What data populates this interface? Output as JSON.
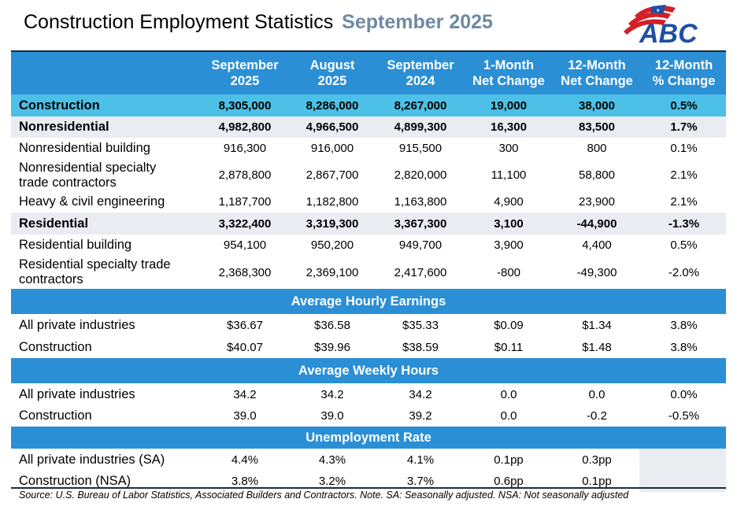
{
  "title": {
    "main": "Construction Employment Statistics",
    "date": "September 2025"
  },
  "logo": {
    "text": "ABC"
  },
  "columns": [
    [
      "September",
      "2025"
    ],
    [
      "August",
      "2025"
    ],
    [
      "September",
      "2024"
    ],
    [
      "1-Month",
      "Net Change"
    ],
    [
      "12-Month",
      "Net Change"
    ],
    [
      "12-Month",
      "% Change"
    ]
  ],
  "rows": [
    {
      "label": [
        "Construction"
      ],
      "values": [
        "8,305,000",
        "8,286,000",
        "8,267,000",
        "19,000",
        "38,000",
        "0.5%"
      ]
    },
    {
      "label": [
        "Nonresidential"
      ],
      "values": [
        "4,982,800",
        "4,966,500",
        "4,899,300",
        "16,300",
        "83,500",
        "1.7%"
      ]
    },
    {
      "label": [
        "Nonresidential building"
      ],
      "values": [
        "916,300",
        "916,000",
        "915,500",
        "300",
        "800",
        "0.1%"
      ]
    },
    {
      "label": [
        "Nonresidential specialty",
        "trade contractors"
      ],
      "values": [
        "2,878,800",
        "2,867,700",
        "2,820,000",
        "11,100",
        "58,800",
        "2.1%"
      ]
    },
    {
      "label": [
        "Heavy & civil engineering"
      ],
      "values": [
        "1,187,700",
        "1,182,800",
        "1,163,800",
        "4,900",
        "23,900",
        "2.1%"
      ]
    },
    {
      "label": [
        "Residential"
      ],
      "values": [
        "3,322,400",
        "3,319,300",
        "3,367,300",
        "3,100",
        "-44,900",
        "-1.3%"
      ]
    },
    {
      "label": [
        "Residential building"
      ],
      "values": [
        "954,100",
        "950,200",
        "949,700",
        "3,900",
        "4,400",
        "0.5%"
      ]
    },
    {
      "label": [
        "Residential specialty trade",
        "contractors"
      ],
      "values": [
        "2,368,300",
        "2,369,100",
        "2,417,600",
        "-800",
        "-49,300",
        "-2.0%"
      ]
    }
  ],
  "earnings": {
    "title": "Average Hourly Earnings",
    "rows": [
      {
        "label": "All private industries",
        "values": [
          "$36.67",
          "$36.58",
          "$35.33",
          "$0.09",
          "$1.34",
          "3.8%"
        ]
      },
      {
        "label": "Construction",
        "values": [
          "$40.07",
          "$39.96",
          "$38.59",
          "$0.11",
          "$1.48",
          "3.8%"
        ]
      }
    ]
  },
  "hours": {
    "title": "Average Weekly Hours",
    "rows": [
      {
        "label": "All private industries",
        "values": [
          "34.2",
          "34.2",
          "34.2",
          "0.0",
          "0.0",
          "0.0%"
        ]
      },
      {
        "label": "Construction",
        "values": [
          "39.0",
          "39.0",
          "39.2",
          "0.0",
          "-0.2",
          "-0.5%"
        ]
      }
    ]
  },
  "unemployment": {
    "title": "Unemployment Rate",
    "rows": [
      {
        "label": "All private industries (SA)",
        "values": [
          "4.4%",
          "4.3%",
          "4.1%",
          "0.1pp",
          "0.3pp"
        ]
      },
      {
        "label": "Construction (NSA)",
        "values": [
          "3.8%",
          "3.2%",
          "3.7%",
          "0.6pp",
          "0.1pp"
        ]
      }
    ]
  },
  "source": "Source: U.S. Bureau of Labor Statistics, Associated Builders and Contractors.  Note. SA: Seasonally adjusted.  NSA: Not seasonally adjusted",
  "colors": {
    "header_blue": "#2b8fd6",
    "cyan": "#4cc0e6",
    "gray": "#e9ecf0",
    "title_date": "#6e8aa3",
    "logo_red": "#d32027",
    "logo_blue": "#1f4fa3"
  }
}
